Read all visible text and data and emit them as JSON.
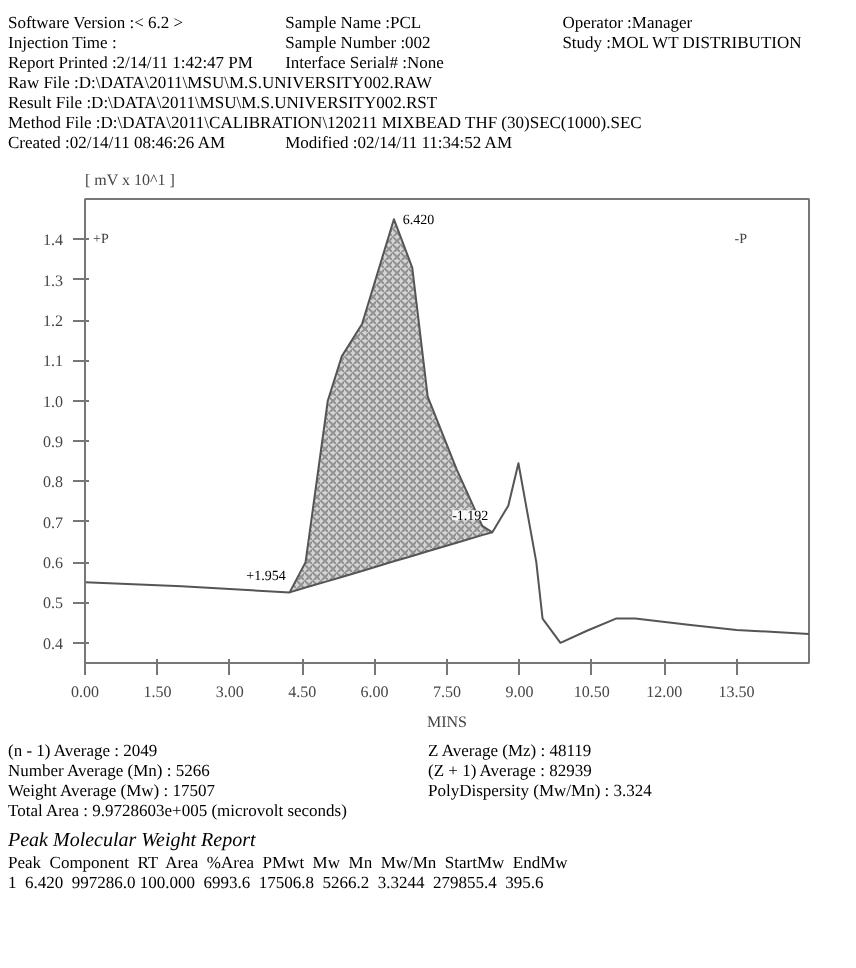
{
  "chart_data": {
    "type": "line",
    "ylabel": "[ mV x 10^1 ]",
    "xlabel": "MINS",
    "xlim": [
      0,
      15
    ],
    "ylim": [
      0.35,
      1.5
    ],
    "xticks": [
      {
        "value": 0,
        "label": "0.00"
      },
      {
        "value": 1.5,
        "label": "1.50"
      },
      {
        "value": 3,
        "label": "3.00"
      },
      {
        "value": 4.5,
        "label": "4.50"
      },
      {
        "value": 6,
        "label": "6.00"
      },
      {
        "value": 7.5,
        "label": "7.50"
      },
      {
        "value": 9,
        "label": "9.00"
      },
      {
        "value": 10.5,
        "label": "10.50"
      },
      {
        "value": 12,
        "label": "12.00"
      },
      {
        "value": 13.5,
        "label": "13.50"
      }
    ],
    "yticks": [
      0.4,
      0.5,
      0.6,
      0.7,
      0.8,
      0.9,
      {
        "value": 1.0,
        "label": "1.0"
      },
      1.1,
      1.2,
      1.3,
      1.4
    ],
    "grid": false,
    "series": [
      {
        "color": "#555555",
        "x": [
          0,
          2,
          4.24,
          4.57,
          5.03,
          5.32,
          5.74,
          6.4,
          6.78,
          7.1,
          7.7,
          8.23,
          8.44,
          8.77,
          8.98,
          9.35,
          9.48,
          9.85,
          10.4,
          11.0,
          11.4,
          12.5,
          13.5,
          15.0
        ],
        "values": [
          0.55,
          0.54,
          0.525,
          0.6,
          1.0,
          1.11,
          1.19,
          1.45,
          1.33,
          1.01,
          0.83,
          0.69,
          0.674,
          0.74,
          0.845,
          0.6,
          0.46,
          0.4,
          0.43,
          0.46,
          0.46,
          0.445,
          0.432,
          0.422
        ]
      },
      {
        "color": "#555555",
        "x": [
          4.24,
          4.57,
          5.03,
          5.32,
          5.74,
          6.4,
          6.78,
          7.1,
          7.7,
          8.23,
          8.44
        ],
        "values": [
          0.525,
          0.537,
          0.553,
          0.563,
          0.578,
          0.602,
          0.615,
          0.627,
          0.648,
          0.667,
          0.674
        ],
        "lower": [
          0.525,
          0.537,
          0.553,
          0.563,
          0.578,
          0.602,
          0.615,
          0.627,
          0.648,
          0.667,
          0.674
        ],
        "upper": [
          0.525,
          0.6,
          1.0,
          1.11,
          1.19,
          1.45,
          1.33,
          1.01,
          0.83,
          0.69,
          0.674
        ]
      }
    ],
    "annotations": [
      "Software Version :< 6.2 >",
      "Sample Name :PCL",
      "Operator :Manager",
      "Injection Time :",
      "Sample Number :002",
      "Study :MOL WT DISTRIBUTION",
      "Report Printed :2/14/11 1:42:47 PM",
      "Interface Serial# :None",
      "Raw File :D:\\DATA\\2011\\MSU\\M.S.UNIVERSITY002.RAW",
      "Result File :D:\\DATA\\2011\\MSU\\M.S.UNIVERSITY002.RST",
      "Method File :D:\\DATA\\2011\\CALIBRATION\\120211 MIXBEAD THF (30)SEC(1000).SEC",
      "Created :02/14/11 08:46:26 AM",
      "Modified :02/14/11 11:34:52 AM",
      "+P",
      "-P",
      {
        "text": "6.420",
        "x": 6.42,
        "y": 1.45
      },
      {
        "text": "+1.954",
        "x": 4.24,
        "y": 0.525
      },
      {
        "text": "-1.192",
        "x": 8.44,
        "y": 0.674
      },
      "(n - 1) Average : 2049",
      "Z Average (Mz) : 48119",
      "Number Average (Mn) : 5266",
      "(Z + 1) Average : 82939",
      "Weight Average (Mw) : 17507",
      "PolyDispersity (Mw/Mn) : 3.324",
      "Total Area : 9.9728603e+005 (microvolt seconds)",
      "Peak Molecular Weight Report",
      "Peak  Component  RT  Area  %Area  PMwt  Mw  Mn  Mw/Mn  StartMw  EndMw",
      "1  6.420  997286.0 100.000  6993.6  17506.8  5266.2  3.3244  279855.4  395.6"
    ]
  }
}
